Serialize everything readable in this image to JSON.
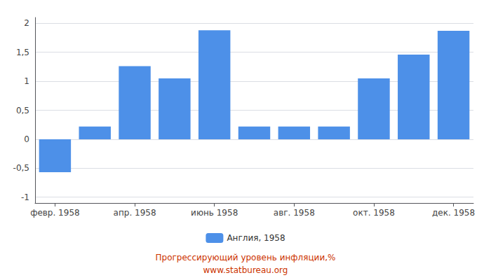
{
  "chart_data": {
    "type": "bar",
    "categories": [
      "февр. 1958",
      null,
      "апр. 1958",
      null,
      "июнь 1958",
      null,
      "авг. 1958",
      null,
      "окт. 1958",
      null,
      "дек. 1958"
    ],
    "series": [
      {
        "name": "Англия, 1958",
        "color": "#4d90e8",
        "values": [
          -0.57,
          0.22,
          1.26,
          1.05,
          1.88,
          0.22,
          0.22,
          0.22,
          1.05,
          1.46,
          1.87
        ]
      }
    ],
    "ylim": [
      -1.1,
      2.1
    ],
    "yticks": [
      -1,
      {
        "value": -0.5,
        "label": "-0,5"
      },
      0,
      {
        "value": 0.5,
        "label": "0,5"
      },
      1,
      {
        "value": 1.5,
        "label": "1,5"
      },
      2
    ],
    "grid": true,
    "legend": "bottom",
    "annotations": [
      "Прогрессирующий уровень инфляции,%",
      "www.statbureau.org"
    ]
  }
}
